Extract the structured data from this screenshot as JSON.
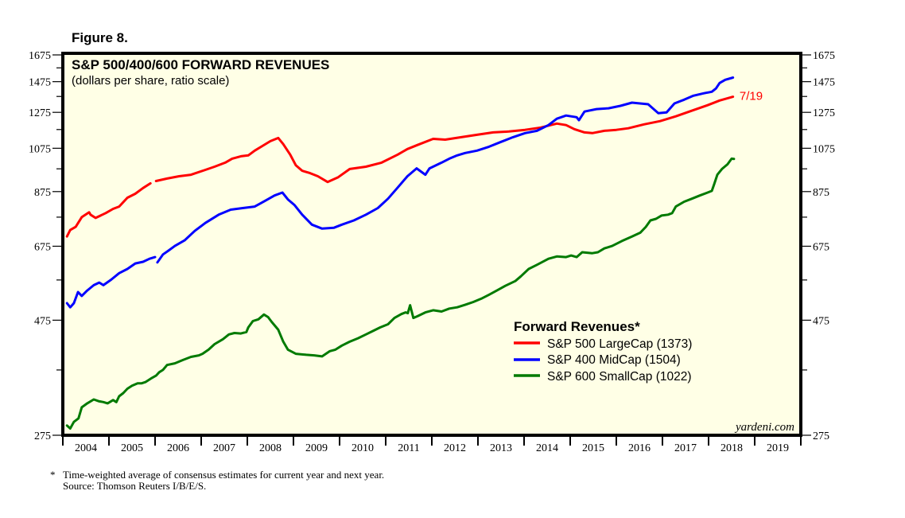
{
  "figure_label": "Figure 8.",
  "footnote": {
    "marker": "*",
    "line1": "Time-weighted average of consensus estimates for current year and next year.",
    "line2": "Source: Thomson Reuters I/B/E/S."
  },
  "watermark": "yardeni.com",
  "colors": {
    "background_plot": "#ffffe6",
    "frame": "#000000",
    "sp500": "#ff0000",
    "sp400": "#0000ff",
    "sp600": "#007a00"
  },
  "chart_data": {
    "type": "line",
    "title": "S&P 500/400/600 FORWARD REVENUES",
    "subtitle": "(dollars per share, ratio scale)",
    "xlabel": "",
    "ylabel": "",
    "yscale": "log",
    "ylim": [
      275,
      1690
    ],
    "xlim": [
      2004,
      2020
    ],
    "yticks": [
      275,
      475,
      675,
      875,
      1075,
      1275,
      1475,
      1675
    ],
    "yticks_minor": [
      375,
      575,
      775,
      975,
      1175,
      1375,
      1575
    ],
    "xtick_labels": [
      "2004",
      "2005",
      "2006",
      "2007",
      "2008",
      "2009",
      "2010",
      "2011",
      "2012",
      "2013",
      "2014",
      "2015",
      "2016",
      "2017",
      "2018",
      "2019"
    ],
    "grid": false,
    "legend": {
      "title": "Forward Revenues*",
      "position": "lower-right",
      "entries": [
        {
          "label": "S&P 500 LargeCap (1373)",
          "series": "sp500"
        },
        {
          "label": "S&P 400 MidCap (1504)",
          "series": "sp400"
        },
        {
          "label": "S&P 600 SmallCap (1022)",
          "series": "sp600"
        }
      ]
    },
    "annotations": [
      {
        "text": "7/19",
        "series": "sp500",
        "at": [
          2018.55,
          1373
        ]
      }
    ],
    "series": [
      {
        "key": "sp500",
        "name": "S&P 500 LargeCap",
        "latest": 1373,
        "points": [
          [
            2004.09,
            707
          ],
          [
            2004.16,
            729
          ],
          [
            2004.28,
            740
          ],
          [
            2004.41,
            775
          ],
          [
            2004.57,
            793
          ],
          [
            2004.6,
            784
          ],
          [
            2004.71,
            772
          ],
          [
            2004.93,
            790
          ],
          [
            2005.09,
            806
          ],
          [
            2005.22,
            815
          ],
          [
            2005.4,
            850
          ],
          [
            2005.57,
            866
          ],
          [
            2005.74,
            890
          ],
          [
            2005.9,
            910
          ],
          null,
          [
            2006.02,
            920
          ],
          [
            2006.26,
            931
          ],
          [
            2006.52,
            941
          ],
          [
            2006.78,
            948
          ],
          [
            2007.09,
            970
          ],
          [
            2007.29,
            985
          ],
          [
            2007.52,
            1004
          ],
          [
            2007.67,
            1023
          ],
          [
            2007.86,
            1035
          ],
          [
            2008.02,
            1039
          ],
          [
            2008.16,
            1063
          ],
          [
            2008.33,
            1087
          ],
          [
            2008.5,
            1112
          ],
          [
            2008.67,
            1129
          ],
          [
            2008.78,
            1096
          ],
          [
            2008.93,
            1043
          ],
          [
            2009.05,
            992
          ],
          [
            2009.19,
            966
          ],
          [
            2009.36,
            955
          ],
          [
            2009.53,
            941
          ],
          [
            2009.74,
            916
          ],
          [
            2009.97,
            937
          ],
          [
            2010.22,
            974
          ],
          [
            2010.57,
            985
          ],
          [
            2010.91,
            1004
          ],
          [
            2011.26,
            1043
          ],
          [
            2011.47,
            1071
          ],
          [
            2011.69,
            1092
          ],
          [
            2012.03,
            1124
          ],
          [
            2012.29,
            1120
          ],
          [
            2012.64,
            1133
          ],
          [
            2012.98,
            1146
          ],
          [
            2013.33,
            1159
          ],
          [
            2013.67,
            1164
          ],
          [
            2014.02,
            1173
          ],
          [
            2014.36,
            1186
          ],
          [
            2014.71,
            1209
          ],
          [
            2014.91,
            1200
          ],
          [
            2015.09,
            1177
          ],
          [
            2015.31,
            1159
          ],
          [
            2015.48,
            1155
          ],
          [
            2015.74,
            1168
          ],
          [
            2016.0,
            1173
          ],
          [
            2016.26,
            1182
          ],
          [
            2016.6,
            1204
          ],
          [
            2016.95,
            1223
          ],
          [
            2017.29,
            1251
          ],
          [
            2017.64,
            1285
          ],
          [
            2017.98,
            1319
          ],
          [
            2018.24,
            1349
          ],
          [
            2018.53,
            1373
          ]
        ]
      },
      {
        "key": "sp400",
        "name": "S&P 400 MidCap",
        "latest": 1504,
        "points": [
          [
            2004.09,
            515
          ],
          [
            2004.16,
            505
          ],
          [
            2004.24,
            515
          ],
          [
            2004.33,
            543
          ],
          [
            2004.41,
            533
          ],
          [
            2004.53,
            547
          ],
          [
            2004.67,
            561
          ],
          [
            2004.79,
            568
          ],
          [
            2004.88,
            561
          ],
          [
            2005.05,
            576
          ],
          [
            2005.22,
            594
          ],
          [
            2005.4,
            606
          ],
          [
            2005.57,
            622
          ],
          [
            2005.74,
            627
          ],
          [
            2005.88,
            636
          ],
          [
            2006.0,
            641
          ],
          null,
          [
            2006.05,
            625
          ],
          [
            2006.17,
            649
          ],
          [
            2006.29,
            661
          ],
          [
            2006.43,
            676
          ],
          [
            2006.64,
            694
          ],
          [
            2006.86,
            726
          ],
          [
            2007.09,
            754
          ],
          [
            2007.38,
            784
          ],
          [
            2007.64,
            803
          ],
          [
            2007.9,
            809
          ],
          [
            2008.16,
            815
          ],
          [
            2008.41,
            840
          ],
          [
            2008.59,
            859
          ],
          [
            2008.76,
            871
          ],
          [
            2008.88,
            843
          ],
          [
            2009.02,
            821
          ],
          [
            2009.19,
            784
          ],
          [
            2009.4,
            748
          ],
          [
            2009.62,
            734
          ],
          [
            2009.88,
            737
          ],
          [
            2010.05,
            748
          ],
          [
            2010.31,
            763
          ],
          [
            2010.57,
            784
          ],
          [
            2010.83,
            809
          ],
          [
            2011.05,
            846
          ],
          [
            2011.26,
            892
          ],
          [
            2011.47,
            941
          ],
          [
            2011.67,
            977
          ],
          [
            2011.86,
            948
          ],
          [
            2011.95,
            977
          ],
          [
            2012.21,
            1004
          ],
          [
            2012.38,
            1023
          ],
          [
            2012.55,
            1039
          ],
          [
            2012.72,
            1051
          ],
          [
            2012.98,
            1063
          ],
          [
            2013.24,
            1083
          ],
          [
            2013.5,
            1108
          ],
          [
            2013.76,
            1133
          ],
          [
            2014.02,
            1155
          ],
          [
            2014.28,
            1168
          ],
          [
            2014.53,
            1200
          ],
          [
            2014.71,
            1237
          ],
          [
            2014.91,
            1256
          ],
          [
            2015.14,
            1246
          ],
          [
            2015.19,
            1228
          ],
          [
            2015.31,
            1280
          ],
          [
            2015.57,
            1295
          ],
          [
            2015.83,
            1300
          ],
          [
            2016.09,
            1315
          ],
          [
            2016.34,
            1335
          ],
          [
            2016.69,
            1325
          ],
          [
            2016.91,
            1270
          ],
          [
            2017.09,
            1275
          ],
          [
            2017.26,
            1330
          ],
          [
            2017.47,
            1354
          ],
          [
            2017.67,
            1380
          ],
          [
            2017.9,
            1396
          ],
          [
            2018.07,
            1406
          ],
          [
            2018.16,
            1428
          ],
          [
            2018.24,
            1466
          ],
          [
            2018.36,
            1488
          ],
          [
            2018.53,
            1504
          ]
        ]
      },
      {
        "key": "sp600",
        "name": "S&P 600 SmallCap",
        "latest": 1022,
        "points": [
          [
            2004.09,
            288
          ],
          [
            2004.16,
            284
          ],
          [
            2004.24,
            293
          ],
          [
            2004.34,
            298
          ],
          [
            2004.41,
            314
          ],
          [
            2004.53,
            320
          ],
          [
            2004.67,
            326
          ],
          [
            2004.79,
            323
          ],
          [
            2004.88,
            322
          ],
          [
            2004.97,
            320
          ],
          [
            2005.09,
            325
          ],
          [
            2005.16,
            322
          ],
          [
            2005.22,
            331
          ],
          [
            2005.31,
            336
          ],
          [
            2005.4,
            343
          ],
          [
            2005.5,
            348
          ],
          [
            2005.62,
            352
          ],
          [
            2005.71,
            352
          ],
          [
            2005.79,
            354
          ],
          [
            2005.91,
            360
          ],
          [
            2006.02,
            365
          ],
          [
            2006.09,
            371
          ],
          [
            2006.17,
            375
          ],
          [
            2006.26,
            384
          ],
          [
            2006.43,
            387
          ],
          [
            2006.6,
            393
          ],
          [
            2006.78,
            399
          ],
          [
            2006.95,
            402
          ],
          [
            2007.03,
            405
          ],
          [
            2007.16,
            413
          ],
          [
            2007.29,
            424
          ],
          [
            2007.47,
            434
          ],
          [
            2007.6,
            444
          ],
          [
            2007.72,
            447
          ],
          [
            2007.86,
            446
          ],
          [
            2007.98,
            449
          ],
          [
            2008.02,
            459
          ],
          [
            2008.12,
            473
          ],
          [
            2008.24,
            477
          ],
          [
            2008.36,
            488
          ],
          [
            2008.45,
            482
          ],
          [
            2008.53,
            471
          ],
          [
            2008.67,
            454
          ],
          [
            2008.78,
            429
          ],
          [
            2008.88,
            413
          ],
          [
            2009.05,
            405
          ],
          [
            2009.28,
            403
          ],
          [
            2009.45,
            402
          ],
          [
            2009.62,
            400
          ],
          [
            2009.79,
            410
          ],
          [
            2009.91,
            413
          ],
          [
            2010.05,
            421
          ],
          [
            2010.22,
            429
          ],
          [
            2010.4,
            436
          ],
          [
            2010.57,
            444
          ],
          [
            2010.74,
            452
          ],
          [
            2010.88,
            459
          ],
          [
            2011.05,
            466
          ],
          [
            2011.19,
            480
          ],
          [
            2011.34,
            489
          ],
          [
            2011.43,
            493
          ],
          [
            2011.48,
            491
          ],
          [
            2011.53,
            510
          ],
          [
            2011.6,
            480
          ],
          [
            2011.69,
            484
          ],
          [
            2011.86,
            493
          ],
          [
            2012.03,
            498
          ],
          [
            2012.21,
            495
          ],
          [
            2012.38,
            502
          ],
          [
            2012.55,
            505
          ],
          [
            2012.72,
            511
          ],
          [
            2012.9,
            518
          ],
          [
            2013.07,
            526
          ],
          [
            2013.24,
            536
          ],
          [
            2013.41,
            547
          ],
          [
            2013.59,
            559
          ],
          [
            2013.81,
            572
          ],
          [
            2013.93,
            585
          ],
          [
            2014.1,
            606
          ],
          [
            2014.28,
            618
          ],
          [
            2014.53,
            636
          ],
          [
            2014.71,
            643
          ],
          [
            2014.91,
            641
          ],
          [
            2015.02,
            646
          ],
          [
            2015.14,
            641
          ],
          [
            2015.26,
            656
          ],
          [
            2015.48,
            653
          ],
          [
            2015.6,
            656
          ],
          [
            2015.74,
            668
          ],
          [
            2015.91,
            676
          ],
          [
            2016.12,
            692
          ],
          [
            2016.34,
            707
          ],
          [
            2016.52,
            720
          ],
          [
            2016.64,
            740
          ],
          [
            2016.74,
            763
          ],
          [
            2016.86,
            769
          ],
          [
            2016.98,
            781
          ],
          [
            2017.12,
            784
          ],
          [
            2017.21,
            790
          ],
          [
            2017.29,
            815
          ],
          [
            2017.47,
            834
          ],
          [
            2017.64,
            846
          ],
          [
            2017.81,
            859
          ],
          [
            2017.98,
            871
          ],
          [
            2018.07,
            878
          ],
          [
            2018.12,
            906
          ],
          [
            2018.19,
            948
          ],
          [
            2018.29,
            974
          ],
          [
            2018.41,
            996
          ],
          [
            2018.5,
            1023
          ],
          [
            2018.55,
            1022
          ]
        ]
      }
    ]
  }
}
